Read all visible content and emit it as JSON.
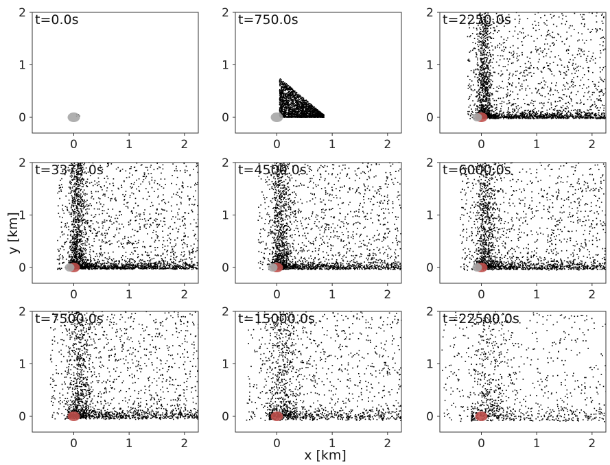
{
  "figure": {
    "xlabel": "x [km]",
    "ylabel": "y [km]"
  },
  "axes": {
    "xlim": [
      -0.75,
      2.25
    ],
    "ylim": [
      -0.3,
      2.0
    ],
    "xticks": [
      0,
      1,
      2
    ],
    "yticks": [
      0,
      1,
      2
    ]
  },
  "colors": {
    "particles": "#000000",
    "source_inactive": "#a6a6a6",
    "source_active": "#c0504d",
    "frame": "#333333"
  },
  "chart_data": [
    {
      "type": "scatter",
      "title": "t=0.0s",
      "source_color": "#a6a6a6",
      "spread": "tiny cluster at origin"
    },
    {
      "type": "scatter",
      "title": "t=750.0s",
      "source_color": "#a6a6a6",
      "spread": "wedge x 0-0.8 km, y 0-0.75 km"
    },
    {
      "type": "scatter",
      "title": "t=2250.0s",
      "source_color": "#c0504d",
      "spread": "plume x 0-2.2 km, y 0-2 km"
    },
    {
      "type": "scatter",
      "title": "t=3375.0s",
      "source_color": "#c0504d",
      "spread": "plume x 0-2.3 km, y 0-2 km"
    },
    {
      "type": "scatter",
      "title": "t=4500.0s",
      "source_color": "#c0504d",
      "spread": "plume x -0.1-2.3 km, y 0-2 km"
    },
    {
      "type": "scatter",
      "title": "t=6000.0s",
      "source_color": "#c0504d",
      "spread": "plume x -0.15-2.3 km, y 0-2 km"
    },
    {
      "type": "scatter",
      "title": "t=7500.0s",
      "source_color": "#c0504d",
      "spread": "plume x -0.2-2.3 km, y 0-2 km"
    },
    {
      "type": "scatter",
      "title": "t=15000.0s",
      "source_color": "#c0504d",
      "spread": "dispersed x -0.5-2.3 km, y -0.1-2 km"
    },
    {
      "type": "scatter",
      "title": "t=22500.0s",
      "source_color": "#c0504d",
      "spread": "dispersed x -0.75-2.3 km, y -0.2-2 km"
    }
  ]
}
